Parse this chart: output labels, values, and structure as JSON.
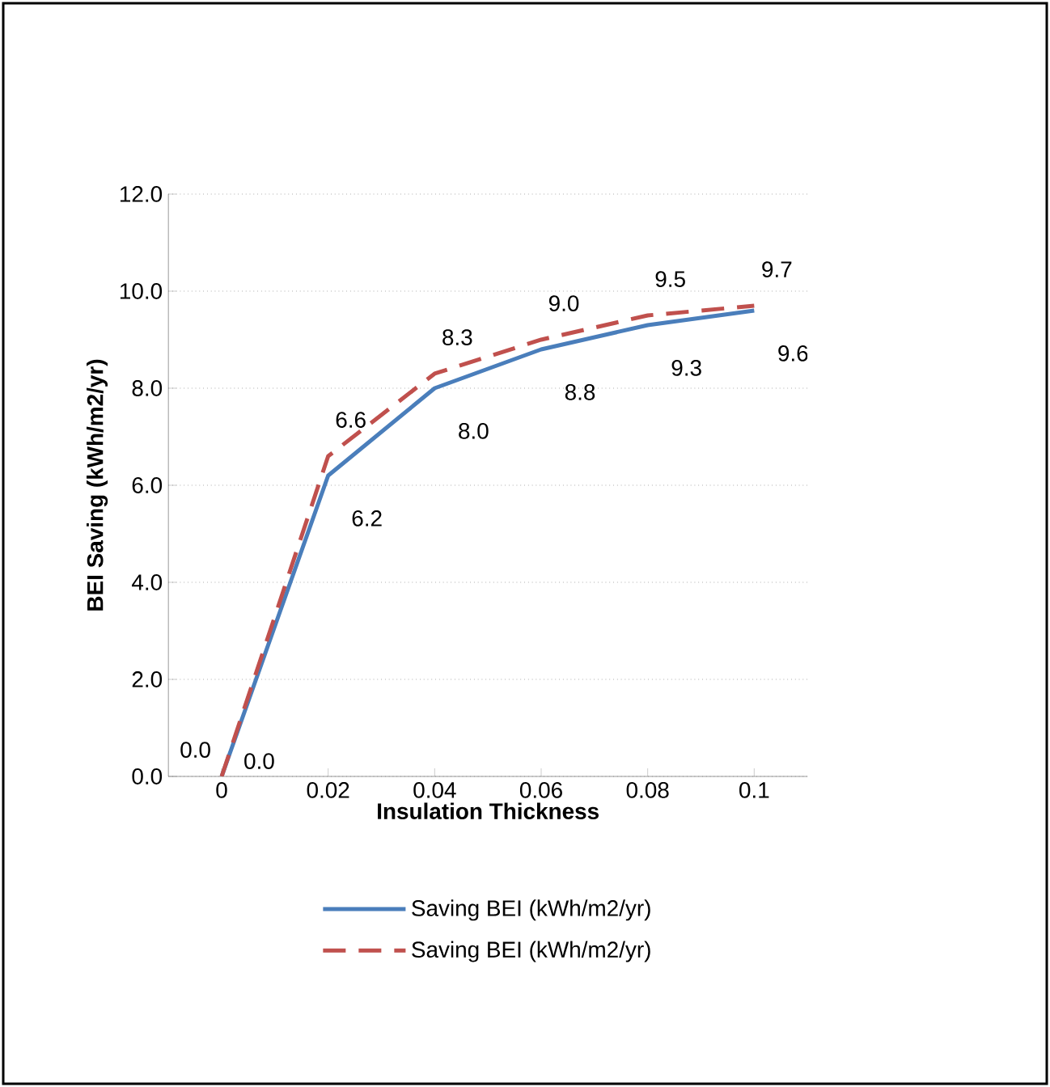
{
  "chart_data": {
    "type": "line",
    "xlabel": "Insulation Thickness",
    "ylabel": "BEI Saving (kWh/m2/yr)",
    "categories": [
      "0",
      "0.02",
      "0.04",
      "0.06",
      "0.08",
      "0.1"
    ],
    "series": [
      {
        "name": "Saving BEI (kWh/m2/yr)",
        "color": "#4a7ebb",
        "line_style": "solid",
        "values": [
          0.0,
          6.2,
          8.0,
          8.8,
          9.3,
          9.6
        ],
        "value_labels": [
          "0.0",
          "6.2",
          "8.0",
          "8.8",
          "9.3",
          "9.6"
        ]
      },
      {
        "name": "Saving BEI (kWh/m2/yr)",
        "color": "#c0504d",
        "line_style": "dashed",
        "values": [
          0.0,
          6.6,
          8.3,
          9.0,
          9.5,
          9.7
        ],
        "value_labels": [
          "0.0",
          "6.6",
          "8.3",
          "9.0",
          "9.5",
          "9.7"
        ]
      }
    ],
    "ylim": [
      0,
      12
    ],
    "yticks": [
      {
        "value": 0,
        "label": "0.0"
      },
      {
        "value": 2,
        "label": "2.0"
      },
      {
        "value": 4,
        "label": "4.0"
      },
      {
        "value": 6,
        "label": "6.0"
      },
      {
        "value": 8,
        "label": "8.0"
      },
      {
        "value": 10,
        "label": "10.0"
      },
      {
        "value": 12,
        "label": "12.0"
      }
    ],
    "grid": "y",
    "legend": "bottom",
    "marker": "none"
  }
}
